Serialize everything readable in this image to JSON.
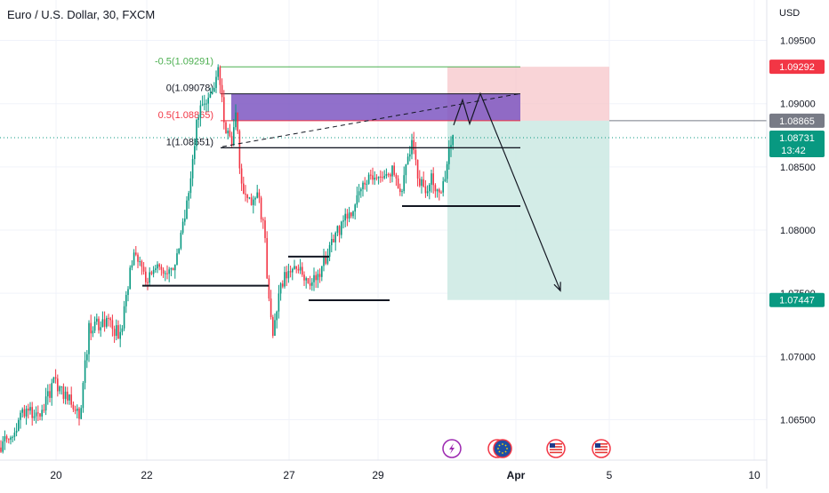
{
  "header": {
    "title": "Euro / U.S. Dollar, 30, FXCM",
    "currency": "USD"
  },
  "colors": {
    "up": "#089981",
    "down": "#f23645",
    "fib_green": "#4caf50",
    "fib_red": "#f23645",
    "zone": "#7e57c2",
    "stop": "#f7c6c9",
    "target": "#cbe9e3",
    "current": "#089981",
    "grey_badge": "#787b86"
  },
  "chart_data": {
    "type": "candlestick",
    "title": "Euro / U.S. Dollar, 30, FXCM",
    "ylabel": "USD",
    "ylim": [
      1.0618,
      1.0982
    ],
    "y_ticks": [
      "1.06500",
      "1.07000",
      "1.07500",
      "1.08000",
      "1.08500",
      "1.09000",
      "1.09500"
    ],
    "y_tick_values": [
      1.065,
      1.07,
      1.075,
      1.08,
      1.085,
      1.09,
      1.095
    ],
    "x_ticks": [
      {
        "label": "20",
        "bold": false
      },
      {
        "label": "22",
        "bold": false
      },
      {
        "label": "27",
        "bold": false
      },
      {
        "label": "29",
        "bold": false
      },
      {
        "label": "Apr",
        "bold": true
      },
      {
        "label": "5",
        "bold": false
      },
      {
        "label": "10",
        "bold": false
      }
    ],
    "x_tick_slots": [
      63,
      165,
      325,
      425,
      580,
      685,
      848
    ],
    "price_path": [
      [
        0,
        1.0628
      ],
      [
        15,
        1.0642
      ],
      [
        30,
        1.066
      ],
      [
        45,
        1.065
      ],
      [
        60,
        1.068
      ],
      [
        75,
        1.0668
      ],
      [
        90,
        1.0655
      ],
      [
        100,
        1.0722
      ],
      [
        120,
        1.0728
      ],
      [
        135,
        1.0716
      ],
      [
        150,
        1.0785
      ],
      [
        165,
        1.0762
      ],
      [
        180,
        1.077
      ],
      [
        195,
        1.0765
      ],
      [
        205,
        1.08
      ],
      [
        215,
        1.084
      ],
      [
        222,
        1.089
      ],
      [
        232,
        1.0902
      ],
      [
        240,
        1.0915
      ],
      [
        246,
        1.0926
      ],
      [
        252,
        1.0885
      ],
      [
        260,
        1.087
      ],
      [
        266,
        1.0895
      ],
      [
        270,
        1.0838
      ],
      [
        280,
        1.082
      ],
      [
        290,
        1.0828
      ],
      [
        297,
        1.08
      ],
      [
        302,
        1.0748
      ],
      [
        307,
        1.0718
      ],
      [
        315,
        1.0758
      ],
      [
        325,
        1.0765
      ],
      [
        335,
        1.0772
      ],
      [
        345,
        1.0762
      ],
      [
        352,
        1.0758
      ],
      [
        362,
        1.077
      ],
      [
        372,
        1.079
      ],
      [
        382,
        1.0802
      ],
      [
        392,
        1.0812
      ],
      [
        402,
        1.0828
      ],
      [
        412,
        1.0838
      ],
      [
        422,
        1.0845
      ],
      [
        432,
        1.0842
      ],
      [
        442,
        1.0848
      ],
      [
        450,
        1.083
      ],
      [
        458,
        1.0855
      ],
      [
        463,
        1.0868
      ],
      [
        470,
        1.084
      ],
      [
        478,
        1.0832
      ],
      [
        486,
        1.0842
      ],
      [
        494,
        1.0828
      ],
      [
        500,
        1.0838
      ],
      [
        505,
        1.086
      ],
      [
        510,
        1.0878
      ]
    ],
    "levels": [
      {
        "name": "support-1",
        "price": 1.0756,
        "x1": 160,
        "x2": 302
      },
      {
        "name": "support-2",
        "price": 1.07445,
        "x1": 347,
        "x2": 438
      },
      {
        "name": "resistance-1",
        "price": 1.0779,
        "x1": 324,
        "x2": 370
      },
      {
        "name": "support-3",
        "price": 1.0819,
        "x1": 452,
        "x2": 585
      },
      {
        "name": "level-1-0865",
        "price": 1.08651,
        "x1": 248,
        "x2": 585
      }
    ],
    "fib": {
      "x1": 248,
      "x2": 585,
      "levels": [
        {
          "label": "-0.5(1.09291)",
          "price": 1.09291,
          "color": "green"
        },
        {
          "label": "0(1.09078)",
          "price": 1.09078,
          "color": "dark"
        },
        {
          "label": "0.5(1.08865)",
          "price": 1.08865,
          "color": "red"
        },
        {
          "label": "1(1.08651)",
          "price": 1.08651,
          "color": "dark"
        }
      ]
    },
    "position": {
      "entry": 1.08865,
      "stop": 1.09292,
      "target": 1.07447,
      "x1": 503,
      "x2": 685
    },
    "projection": [
      [
        510,
        1.0883
      ],
      [
        520,
        1.0903
      ],
      [
        528,
        1.0884
      ],
      [
        540,
        1.0908
      ],
      [
        555,
        1.0882
      ],
      [
        630,
        1.0752
      ]
    ],
    "trendline": [
      [
        250,
        1.0866
      ],
      [
        585,
        1.0908
      ]
    ],
    "price_badges": [
      {
        "label": "1.09292",
        "price": 1.09292,
        "kind": "stop"
      },
      {
        "label": "1.08865",
        "price": 1.08865,
        "kind": "grey"
      },
      {
        "label": "1.08731",
        "sub": "13:42",
        "price": 1.08731,
        "kind": "current"
      },
      {
        "label": "1.07447",
        "price": 1.07447,
        "kind": "target"
      }
    ],
    "event_icons": [
      {
        "name": "lightning-event-icon",
        "x": 508
      },
      {
        "name": "eu-event-icon",
        "x": 565
      },
      {
        "name": "us-event-icon-1",
        "x": 625
      },
      {
        "name": "us-event-icon-2",
        "x": 676
      }
    ]
  }
}
